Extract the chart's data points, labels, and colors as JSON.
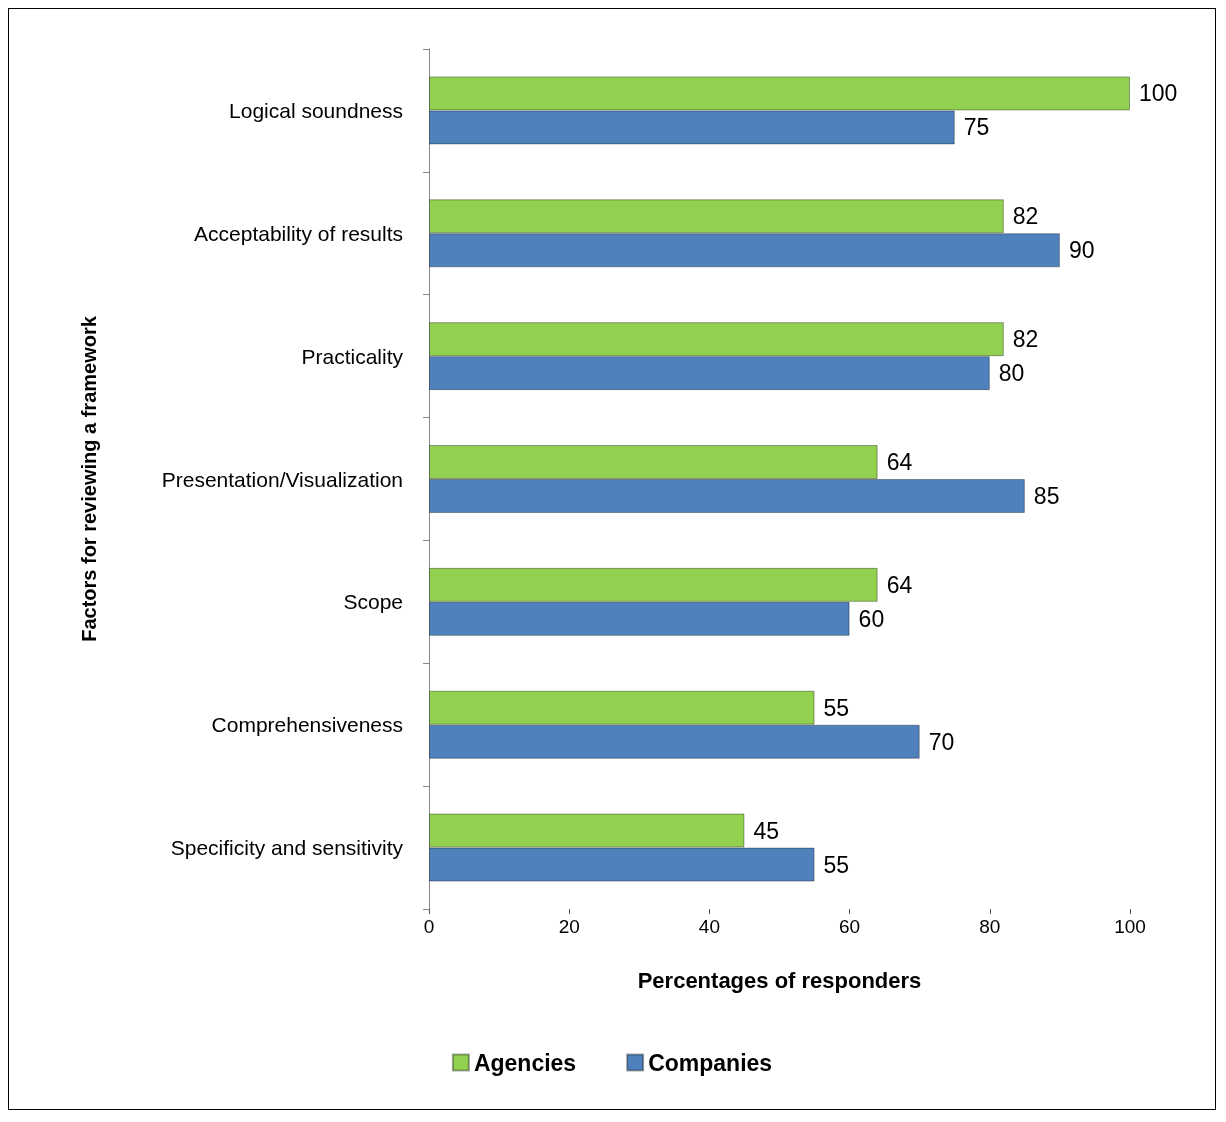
{
  "chart_data": {
    "type": "bar",
    "orientation": "horizontal",
    "xlabel": "Percentages of responders",
    "ylabel": "Factors for reviewing a framework",
    "categories": [
      "Logical soundness",
      "Acceptability of results",
      "Practicality",
      "Presentation/Visualization",
      "Scope",
      "Comprehensiveness",
      "Specificity and sensitivity"
    ],
    "series": [
      {
        "name": "Agencies",
        "color": "#92d050",
        "values": [
          100,
          82,
          82,
          64,
          64,
          55,
          45
        ]
      },
      {
        "name": "Companies",
        "color": "#4f81bd",
        "values": [
          75,
          90,
          80,
          85,
          60,
          70,
          55
        ]
      }
    ],
    "xlim": [
      0,
      100
    ],
    "xticks": [
      0,
      20,
      40,
      60,
      80,
      100
    ],
    "data_labels": true,
    "legend": "bottom",
    "grid": false
  }
}
